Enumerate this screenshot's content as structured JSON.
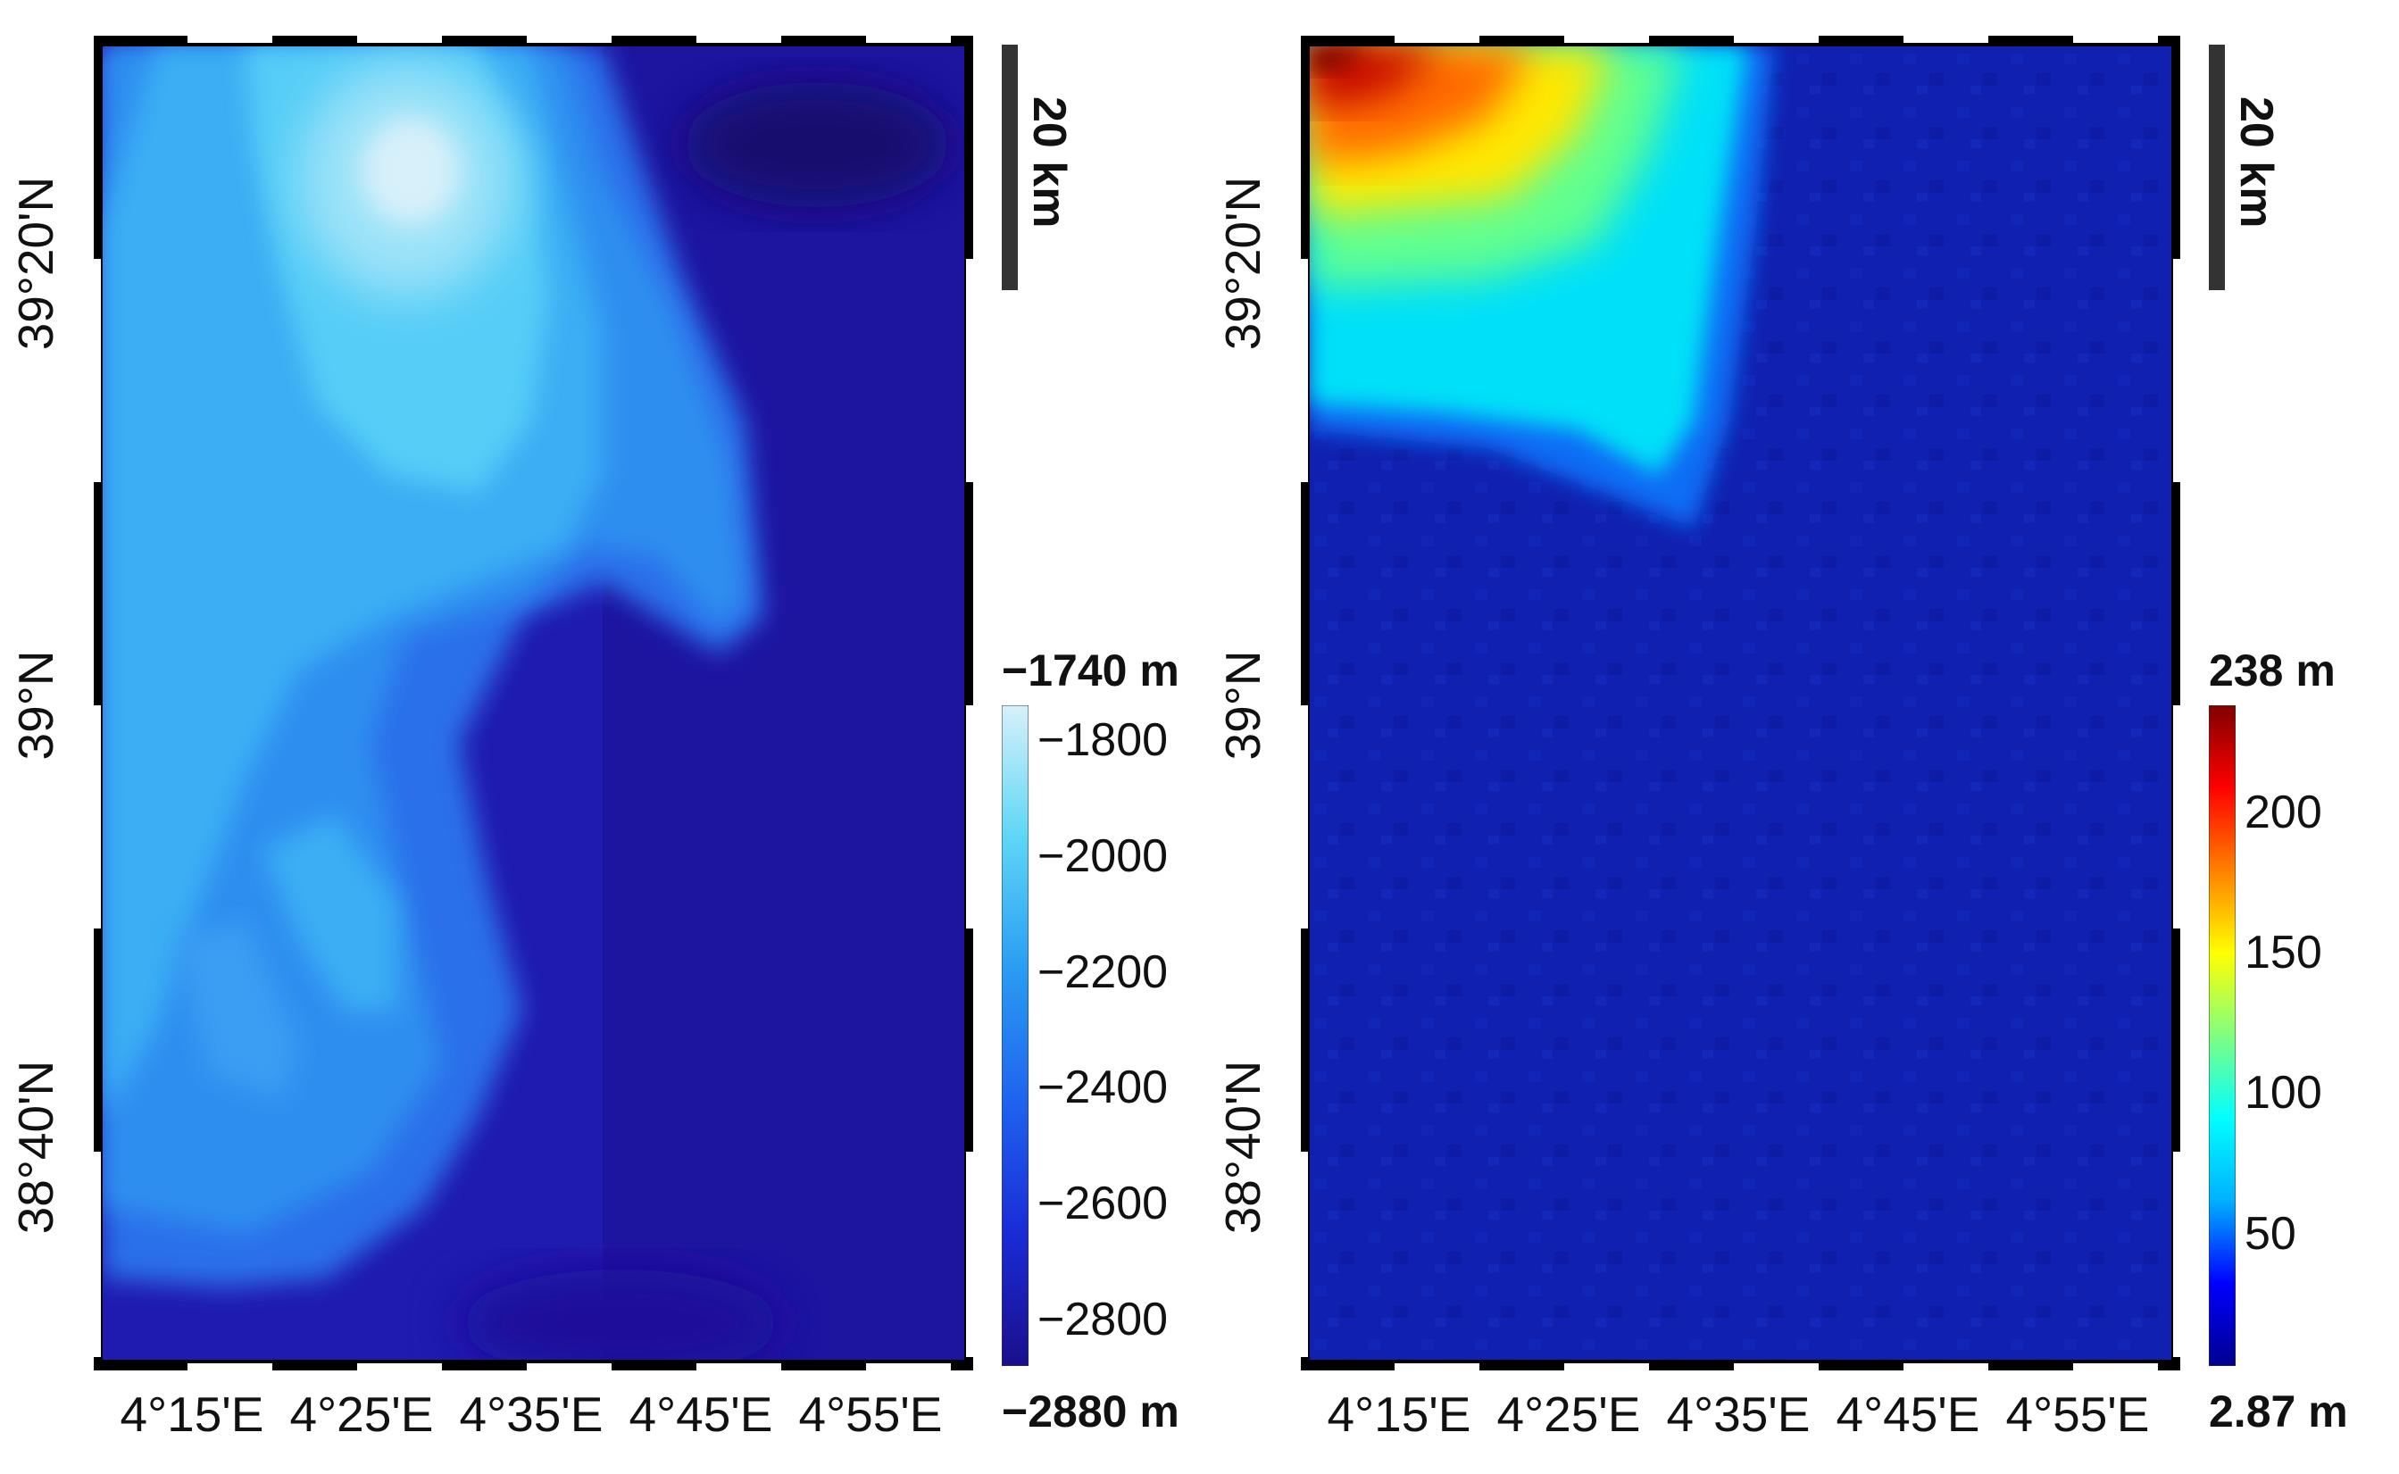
{
  "panels": [
    {
      "id": "bathymetry",
      "lon_labels": [
        "4°15'E",
        "4°25'E",
        "4°35'E",
        "4°45'E",
        "4°55'E"
      ],
      "lat_labels": [
        "39°20'N",
        "39°N",
        "38°40'N"
      ],
      "scale_label": "20 km",
      "colorbar": {
        "max_label": "−1740 m",
        "min_label": "−2880 m",
        "ticks": [
          "−1800",
          "−2000",
          "−2200",
          "−2400",
          "−2600",
          "−2800"
        ],
        "tick_values": [
          -1800,
          -2000,
          -2200,
          -2400,
          -2600,
          -2800
        ],
        "range": [
          -2880,
          -1740
        ],
        "colors": [
          "#1a0f8c",
          "#1a2bd6",
          "#1f63ee",
          "#2a9cf2",
          "#5ed6f6",
          "#d7f0fa"
        ]
      }
    },
    {
      "id": "uncertainty",
      "lon_labels": [
        "4°15'E",
        "4°25'E",
        "4°35'E",
        "4°45'E",
        "4°55'E"
      ],
      "lat_labels": [
        "39°20'N",
        "39°N",
        "38°40'N"
      ],
      "scale_label": "20 km",
      "colorbar": {
        "max_label": "238 m",
        "min_label": "2.87 m",
        "ticks": [
          "200",
          "150",
          "100",
          "50"
        ],
        "tick_values": [
          200,
          150,
          100,
          50
        ],
        "range": [
          2.87,
          238
        ],
        "colors": [
          "#00008f",
          "#0000ff",
          "#00b0ff",
          "#00ffff",
          "#80ff80",
          "#ffff00",
          "#ff8000",
          "#ff0000",
          "#800000"
        ]
      }
    }
  ]
}
